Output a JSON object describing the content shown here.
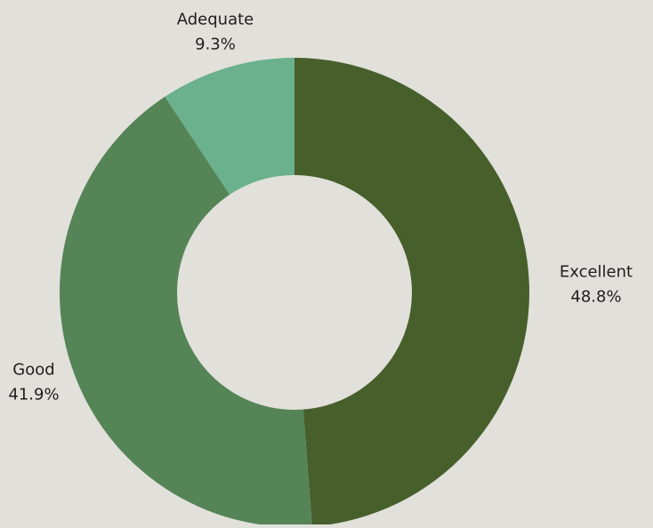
{
  "chart_data": {
    "type": "pie",
    "subtype": "donut",
    "categories": [
      "Excellent",
      "Good",
      "Adequate"
    ],
    "values": [
      48.8,
      41.9,
      9.3
    ],
    "labels": [
      "48.8%",
      "41.9%",
      "9.3%"
    ],
    "colors": [
      "#475f2b",
      "#558456",
      "#6bb18d"
    ],
    "start": "top",
    "direction": "clockwise",
    "legend": "none",
    "title": ""
  },
  "colors": {
    "background": "#e1e0da",
    "text": "#1f1f1f"
  }
}
